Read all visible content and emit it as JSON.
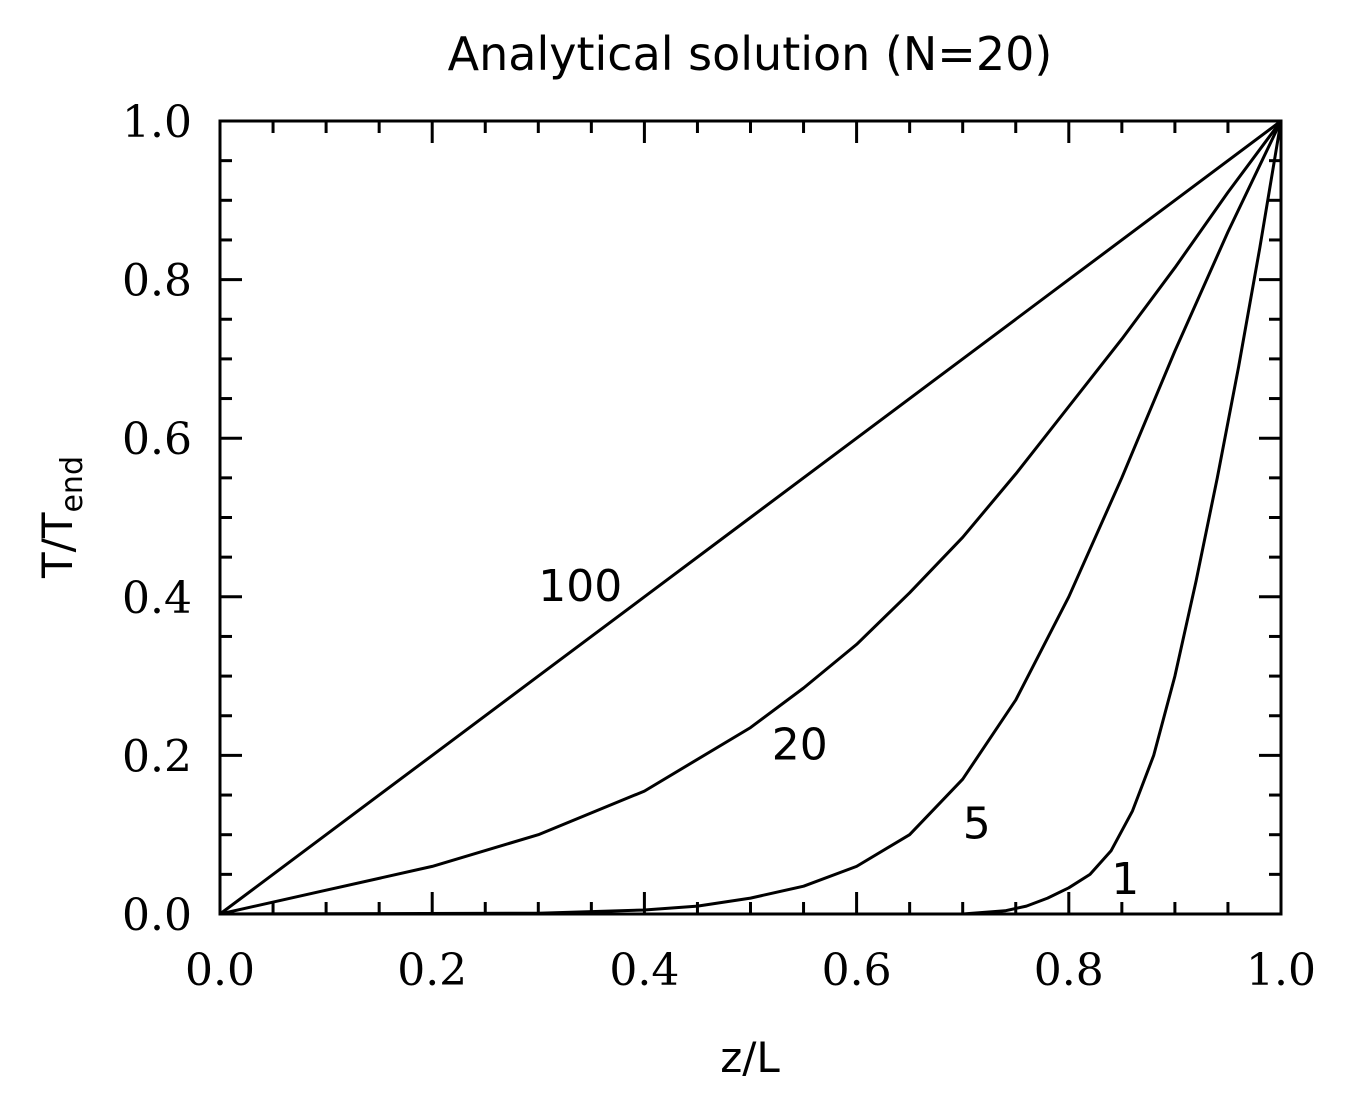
{
  "chart_data": {
    "type": "line",
    "title": "Analytical solution (N=20)",
    "xlabel": "z/L",
    "ylabel": {
      "base": "T/T",
      "sub": "end"
    },
    "xlim": [
      0,
      1
    ],
    "ylim": [
      0,
      1
    ],
    "xticks": [
      "0.0",
      "0.2",
      "0.4",
      "0.6",
      "0.8",
      "1.0"
    ],
    "yticks": [
      "0.0",
      "0.2",
      "0.4",
      "0.6",
      "0.8",
      "1.0"
    ],
    "grid": false,
    "legend": "none",
    "series": [
      {
        "name": "100",
        "x": [
          0,
          0.1,
          0.2,
          0.3,
          0.4,
          0.5,
          0.6,
          0.7,
          0.8,
          0.9,
          1.0
        ],
        "y": [
          0,
          0.1,
          0.2,
          0.3,
          0.4,
          0.5,
          0.6,
          0.7,
          0.8,
          0.9,
          1.0
        ]
      },
      {
        "name": "20",
        "x": [
          0,
          0.1,
          0.2,
          0.3,
          0.4,
          0.5,
          0.55,
          0.6,
          0.65,
          0.7,
          0.75,
          0.8,
          0.85,
          0.9,
          0.95,
          1.0
        ],
        "y": [
          0,
          0.03,
          0.06,
          0.1,
          0.155,
          0.235,
          0.285,
          0.34,
          0.405,
          0.475,
          0.555,
          0.64,
          0.725,
          0.815,
          0.91,
          1.0
        ]
      },
      {
        "name": "5",
        "x": [
          0,
          0.3,
          0.4,
          0.45,
          0.5,
          0.55,
          0.6,
          0.65,
          0.7,
          0.75,
          0.8,
          0.85,
          0.9,
          0.95,
          1.0
        ],
        "y": [
          0,
          0.001,
          0.005,
          0.01,
          0.02,
          0.035,
          0.06,
          0.1,
          0.17,
          0.27,
          0.4,
          0.55,
          0.71,
          0.86,
          1.0
        ]
      },
      {
        "name": "1",
        "x": [
          0,
          0.5,
          0.6,
          0.7,
          0.74,
          0.76,
          0.78,
          0.8,
          0.82,
          0.84,
          0.86,
          0.88,
          0.9,
          0.92,
          0.94,
          0.96,
          0.98,
          1.0
        ],
        "y": [
          0,
          0,
          0,
          0,
          0.004,
          0.01,
          0.02,
          0.033,
          0.05,
          0.08,
          0.13,
          0.2,
          0.3,
          0.42,
          0.55,
          0.69,
          0.84,
          1.0
        ]
      }
    ],
    "annotations": [
      {
        "text": "100",
        "x": 0.3,
        "y": 0.395
      },
      {
        "text": "20",
        "x": 0.52,
        "y": 0.195
      },
      {
        "text": "5",
        "x": 0.7,
        "y": 0.095
      },
      {
        "text": "1",
        "x": 0.84,
        "y": 0.025
      }
    ]
  }
}
